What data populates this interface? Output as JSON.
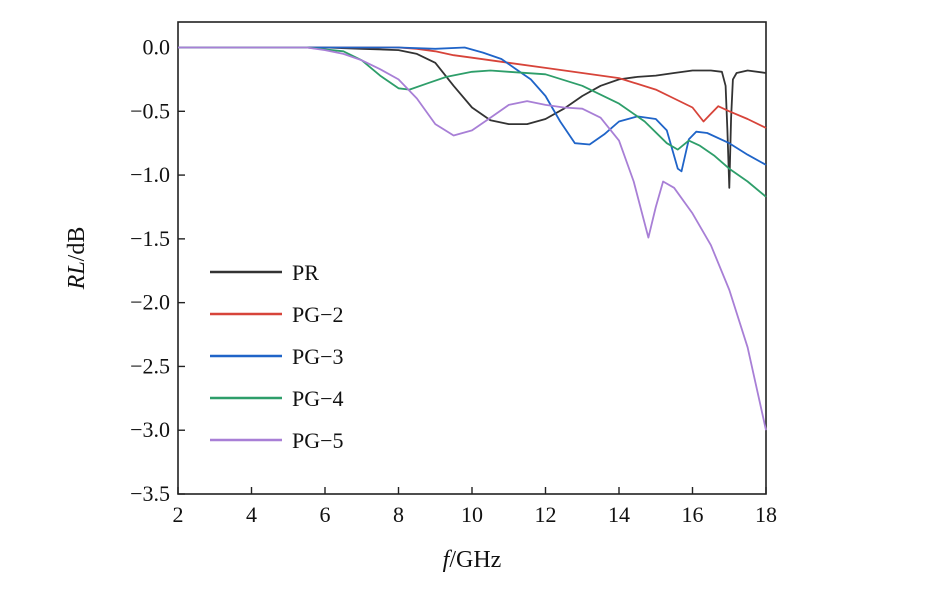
{
  "chart_data": {
    "type": "line",
    "title": "",
    "xlabel": {
      "italic": "f",
      "rest": "/GHz"
    },
    "ylabel": {
      "italic": "RL",
      "rest": "/dB"
    },
    "xlim": [
      2,
      18
    ],
    "ylim": [
      -3.5,
      0.2
    ],
    "xticks": [
      2,
      4,
      6,
      8,
      10,
      12,
      14,
      16,
      18
    ],
    "xtick_labels": [
      "2",
      "4",
      "6",
      "8",
      "10",
      "12",
      "14",
      "16",
      "18"
    ],
    "yticks": [
      0.0,
      -0.5,
      -1.0,
      -1.5,
      -2.0,
      -2.5,
      -3.0,
      -3.5
    ],
    "ytick_labels": [
      "0.0",
      "−0.5",
      "−1.0",
      "−1.5",
      "−2.0",
      "−2.5",
      "−3.0",
      "−3.5"
    ],
    "grid": false,
    "legend_position": "center-left",
    "series": [
      {
        "name": "PR",
        "color": "#333333",
        "points": [
          [
            2,
            0
          ],
          [
            6,
            0
          ],
          [
            7,
            -0.01
          ],
          [
            8,
            -0.02
          ],
          [
            8.5,
            -0.05
          ],
          [
            9,
            -0.12
          ],
          [
            9.5,
            -0.3
          ],
          [
            10,
            -0.47
          ],
          [
            10.5,
            -0.57
          ],
          [
            11,
            -0.6
          ],
          [
            11.5,
            -0.6
          ],
          [
            12,
            -0.56
          ],
          [
            12.5,
            -0.48
          ],
          [
            13,
            -0.38
          ],
          [
            13.5,
            -0.3
          ],
          [
            14,
            -0.25
          ],
          [
            14.5,
            -0.23
          ],
          [
            15,
            -0.22
          ],
          [
            15.5,
            -0.2
          ],
          [
            16,
            -0.18
          ],
          [
            16.5,
            -0.18
          ],
          [
            16.8,
            -0.19
          ],
          [
            16.9,
            -0.3
          ],
          [
            16.95,
            -0.65
          ],
          [
            17.0,
            -1.1
          ],
          [
            17.05,
            -0.55
          ],
          [
            17.1,
            -0.25
          ],
          [
            17.2,
            -0.2
          ],
          [
            17.5,
            -0.18
          ],
          [
            18,
            -0.2
          ]
        ]
      },
      {
        "name": "PG−2",
        "color": "#d7443a",
        "points": [
          [
            2,
            0
          ],
          [
            6,
            0
          ],
          [
            7,
            0
          ],
          [
            8,
            0
          ],
          [
            8.5,
            -0.01
          ],
          [
            9,
            -0.03
          ],
          [
            9.5,
            -0.06
          ],
          [
            10,
            -0.08
          ],
          [
            11,
            -0.12
          ],
          [
            12,
            -0.16
          ],
          [
            13,
            -0.2
          ],
          [
            14,
            -0.24
          ],
          [
            15,
            -0.33
          ],
          [
            15.5,
            -0.4
          ],
          [
            16,
            -0.47
          ],
          [
            16.3,
            -0.58
          ],
          [
            16.5,
            -0.52
          ],
          [
            16.7,
            -0.46
          ],
          [
            17,
            -0.5
          ],
          [
            17.5,
            -0.56
          ],
          [
            18,
            -0.63
          ]
        ]
      },
      {
        "name": "PG−3",
        "color": "#1f64c8",
        "points": [
          [
            2,
            0
          ],
          [
            6,
            0
          ],
          [
            7,
            0
          ],
          [
            8,
            0
          ],
          [
            9,
            -0.01
          ],
          [
            9.8,
            0
          ],
          [
            10.3,
            -0.04
          ],
          [
            10.8,
            -0.09
          ],
          [
            11.2,
            -0.17
          ],
          [
            11.6,
            -0.25
          ],
          [
            12,
            -0.38
          ],
          [
            12.4,
            -0.58
          ],
          [
            12.8,
            -0.75
          ],
          [
            13.2,
            -0.76
          ],
          [
            13.6,
            -0.68
          ],
          [
            14,
            -0.58
          ],
          [
            14.5,
            -0.54
          ],
          [
            15,
            -0.56
          ],
          [
            15.3,
            -0.65
          ],
          [
            15.6,
            -0.95
          ],
          [
            15.7,
            -0.97
          ],
          [
            15.9,
            -0.72
          ],
          [
            16.1,
            -0.66
          ],
          [
            16.4,
            -0.67
          ],
          [
            17,
            -0.75
          ],
          [
            17.5,
            -0.84
          ],
          [
            18,
            -0.92
          ]
        ]
      },
      {
        "name": "PG−4",
        "color": "#2e9e6a",
        "points": [
          [
            2,
            0
          ],
          [
            5.5,
            0
          ],
          [
            6.5,
            -0.03
          ],
          [
            7,
            -0.1
          ],
          [
            7.5,
            -0.22
          ],
          [
            8,
            -0.32
          ],
          [
            8.3,
            -0.33
          ],
          [
            8.8,
            -0.28
          ],
          [
            9.3,
            -0.23
          ],
          [
            10,
            -0.19
          ],
          [
            10.5,
            -0.18
          ],
          [
            11,
            -0.19
          ],
          [
            12,
            -0.21
          ],
          [
            13,
            -0.3
          ],
          [
            14,
            -0.44
          ],
          [
            14.7,
            -0.58
          ],
          [
            15.3,
            -0.75
          ],
          [
            15.6,
            -0.8
          ],
          [
            15.9,
            -0.73
          ],
          [
            16.2,
            -0.77
          ],
          [
            16.6,
            -0.85
          ],
          [
            17,
            -0.95
          ],
          [
            17.5,
            -1.05
          ],
          [
            18,
            -1.17
          ]
        ]
      },
      {
        "name": "PG−5",
        "color": "#a87fd6",
        "points": [
          [
            2,
            0
          ],
          [
            5.5,
            0
          ],
          [
            6,
            -0.02
          ],
          [
            6.5,
            -0.05
          ],
          [
            7,
            -0.1
          ],
          [
            7.5,
            -0.17
          ],
          [
            8,
            -0.25
          ],
          [
            8.5,
            -0.4
          ],
          [
            9,
            -0.6
          ],
          [
            9.5,
            -0.69
          ],
          [
            10,
            -0.65
          ],
          [
            10.5,
            -0.55
          ],
          [
            11,
            -0.45
          ],
          [
            11.5,
            -0.42
          ],
          [
            12,
            -0.45
          ],
          [
            12.5,
            -0.47
          ],
          [
            13,
            -0.48
          ],
          [
            13.5,
            -0.55
          ],
          [
            14,
            -0.73
          ],
          [
            14.4,
            -1.05
          ],
          [
            14.8,
            -1.49
          ],
          [
            15.0,
            -1.25
          ],
          [
            15.2,
            -1.05
          ],
          [
            15.5,
            -1.1
          ],
          [
            16,
            -1.3
          ],
          [
            16.5,
            -1.55
          ],
          [
            17,
            -1.9
          ],
          [
            17.5,
            -2.35
          ],
          [
            18,
            -3.0
          ]
        ]
      }
    ]
  }
}
